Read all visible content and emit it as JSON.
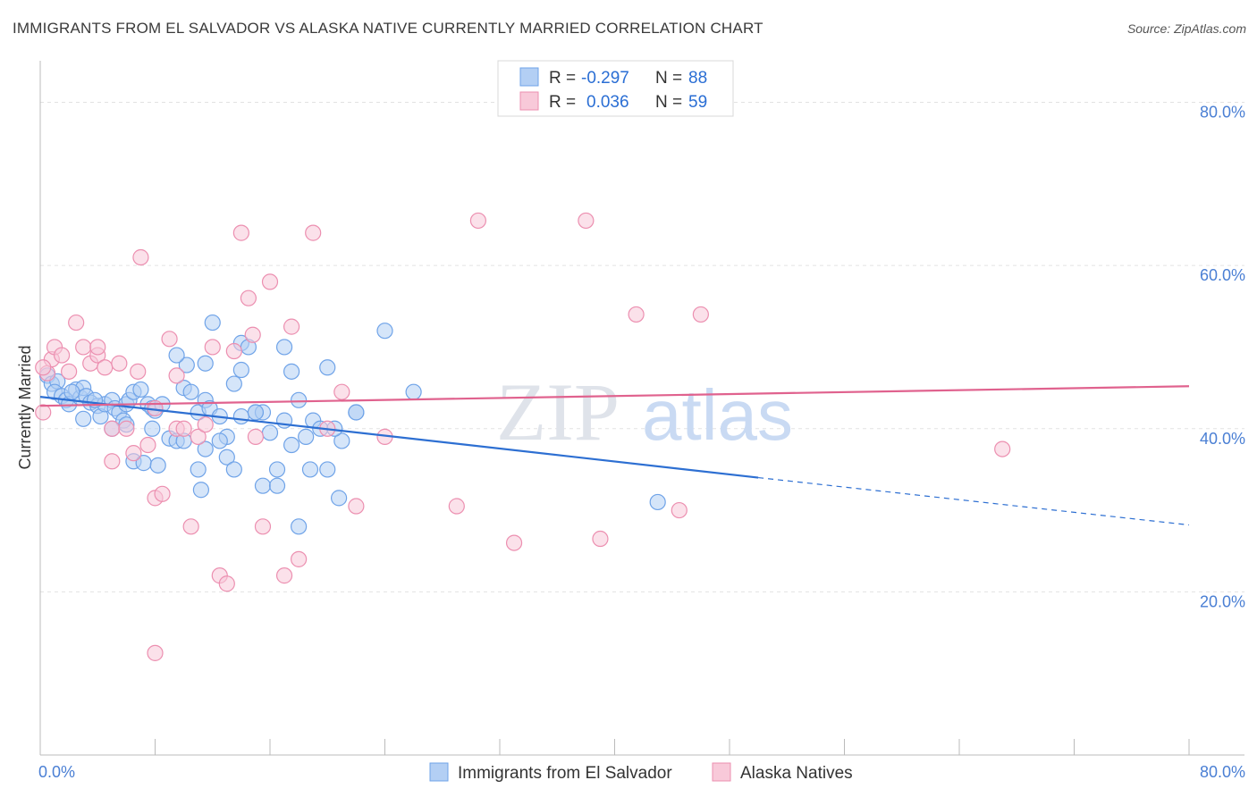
{
  "title": "IMMIGRANTS FROM EL SALVADOR VS ALASKA NATIVE CURRENTLY MARRIED CORRELATION CHART",
  "source": "Source: ZipAtlas.com",
  "watermark": {
    "zip": "ZIP",
    "atlas": "atlas"
  },
  "chart_data": {
    "type": "scatter",
    "ylabel": "Currently Married",
    "xlim": [
      0,
      80
    ],
    "ylim": [
      0,
      84
    ],
    "x_ticks": [
      {
        "value": 0,
        "label": "0.0%"
      },
      {
        "value": 80,
        "label": "80.0%"
      }
    ],
    "y_ticks": [
      {
        "value": 20,
        "label": "20.0%"
      },
      {
        "value": 40,
        "label": "40.0%"
      },
      {
        "value": 60,
        "label": "60.0%"
      },
      {
        "value": 80,
        "label": "80.0%"
      }
    ],
    "grid": true,
    "legend_position": "top-center",
    "legend": [
      {
        "r_label": "R =",
        "r_value": "-0.297",
        "n_label": "N =",
        "n_value": "88"
      },
      {
        "r_label": "R =",
        "r_value": "0.036",
        "n_label": "N =",
        "n_value": "59"
      }
    ],
    "series": [
      {
        "name": "Immigrants from El Salvador",
        "color": "#6fa3e8",
        "fill": "#b3cff4",
        "line_color": "#2d6fd2",
        "trend": {
          "x0": 0,
          "y0": 43.9,
          "x1": 50,
          "y1": 34.0,
          "dash_to_x": 80,
          "dash_to_y": 28.2
        },
        "points": [
          [
            0.5,
            46.5
          ],
          [
            0.8,
            45.5
          ],
          [
            1.2,
            45.8
          ],
          [
            1.0,
            44.5
          ],
          [
            1.5,
            44.0
          ],
          [
            1.8,
            43.5
          ],
          [
            2.0,
            43.0
          ],
          [
            2.5,
            44.8
          ],
          [
            2.8,
            43.8
          ],
          [
            3.0,
            45.0
          ],
          [
            3.2,
            44.0
          ],
          [
            3.5,
            43.2
          ],
          [
            3.0,
            41.2
          ],
          [
            4.0,
            42.8
          ],
          [
            4.2,
            41.5
          ],
          [
            4.5,
            43.0
          ],
          [
            5.0,
            43.5
          ],
          [
            5.2,
            42.5
          ],
          [
            5.5,
            42.0
          ],
          [
            5.8,
            41.0
          ],
          [
            6.0,
            43.0
          ],
          [
            6.2,
            43.5
          ],
          [
            6.0,
            40.5
          ],
          [
            6.5,
            44.5
          ],
          [
            7.0,
            44.8
          ],
          [
            7.5,
            43.0
          ],
          [
            7.8,
            42.5
          ],
          [
            8.0,
            42.2
          ],
          [
            8.5,
            43.0
          ],
          [
            9.0,
            38.8
          ],
          [
            9.5,
            38.5
          ],
          [
            10.0,
            45.0
          ],
          [
            10.5,
            44.5
          ],
          [
            10.2,
            47.8
          ],
          [
            11.0,
            42.0
          ],
          [
            11.5,
            43.5
          ],
          [
            11.8,
            42.5
          ],
          [
            11.5,
            48.0
          ],
          [
            12.0,
            53.0
          ],
          [
            12.5,
            41.5
          ],
          [
            13.0,
            39.0
          ],
          [
            13.5,
            45.5
          ],
          [
            14.0,
            47.2
          ],
          [
            14.0,
            50.5
          ],
          [
            14.5,
            50.0
          ],
          [
            15.0,
            42.0
          ],
          [
            15.5,
            42.0
          ],
          [
            16.0,
            39.5
          ],
          [
            17.0,
            50.0
          ],
          [
            17.5,
            47.0
          ],
          [
            17.0,
            41.0
          ],
          [
            18.0,
            43.5
          ],
          [
            18.5,
            39.0
          ],
          [
            19.0,
            41.0
          ],
          [
            19.5,
            40.0
          ],
          [
            20.0,
            47.5
          ],
          [
            21.0,
            38.5
          ],
          [
            22.0,
            42.0
          ],
          [
            24.0,
            52.0
          ],
          [
            26.0,
            44.5
          ],
          [
            5.0,
            40.0
          ],
          [
            6.5,
            36.0
          ],
          [
            7.2,
            35.8
          ],
          [
            7.8,
            40.0
          ],
          [
            8.2,
            35.5
          ],
          [
            9.5,
            49.0
          ],
          [
            10.0,
            38.5
          ],
          [
            11.0,
            35.0
          ],
          [
            11.2,
            32.5
          ],
          [
            11.5,
            37.5
          ],
          [
            12.5,
            38.5
          ],
          [
            13.0,
            36.5
          ],
          [
            13.5,
            35.0
          ],
          [
            14.0,
            41.5
          ],
          [
            15.0,
            42.0
          ],
          [
            15.5,
            33.0
          ],
          [
            16.5,
            35.0
          ],
          [
            16.5,
            33.0
          ],
          [
            17.5,
            38.0
          ],
          [
            18.0,
            28.0
          ],
          [
            18.8,
            35.0
          ],
          [
            20.0,
            35.0
          ],
          [
            20.5,
            40.0
          ],
          [
            20.8,
            31.5
          ],
          [
            22.0,
            42.0
          ],
          [
            3.8,
            43.5
          ],
          [
            2.2,
            44.5
          ],
          [
            43.0,
            31.0
          ]
        ]
      },
      {
        "name": "Alaska Natives",
        "color": "#ec8fb0",
        "fill": "#f8c9d9",
        "line_color": "#e0628e",
        "trend": {
          "x0": 0,
          "y0": 42.8,
          "x1": 80,
          "y1": 45.2
        },
        "points": [
          [
            0.2,
            42.0
          ],
          [
            0.5,
            46.8
          ],
          [
            0.8,
            48.5
          ],
          [
            1.0,
            50.0
          ],
          [
            1.5,
            49.0
          ],
          [
            2.0,
            47.0
          ],
          [
            2.5,
            53.0
          ],
          [
            3.0,
            50.0
          ],
          [
            3.5,
            48.0
          ],
          [
            4.0,
            49.0
          ],
          [
            4.0,
            50.0
          ],
          [
            4.5,
            47.5
          ],
          [
            5.0,
            40.0
          ],
          [
            5.0,
            36.0
          ],
          [
            6.0,
            40.0
          ],
          [
            6.5,
            37.0
          ],
          [
            6.8,
            47.0
          ],
          [
            7.0,
            61.0
          ],
          [
            7.5,
            38.0
          ],
          [
            8.0,
            42.5
          ],
          [
            8.0,
            31.5
          ],
          [
            8.5,
            32.0
          ],
          [
            9.0,
            51.0
          ],
          [
            9.5,
            46.5
          ],
          [
            9.5,
            40.0
          ],
          [
            10.0,
            40.0
          ],
          [
            10.5,
            28.0
          ],
          [
            11.0,
            39.0
          ],
          [
            11.5,
            40.5
          ],
          [
            12.0,
            50.0
          ],
          [
            12.5,
            22.0
          ],
          [
            13.0,
            21.0
          ],
          [
            13.5,
            49.5
          ],
          [
            14.0,
            64.0
          ],
          [
            14.5,
            56.0
          ],
          [
            14.8,
            51.5
          ],
          [
            15.0,
            39.0
          ],
          [
            15.5,
            28.0
          ],
          [
            16.0,
            58.0
          ],
          [
            17.0,
            22.0
          ],
          [
            17.5,
            52.5
          ],
          [
            18.0,
            24.0
          ],
          [
            19.0,
            64.0
          ],
          [
            20.0,
            40.0
          ],
          [
            21.0,
            44.5
          ],
          [
            22.0,
            30.5
          ],
          [
            24.0,
            39.0
          ],
          [
            29.0,
            30.5
          ],
          [
            30.5,
            65.5
          ],
          [
            33.0,
            26.0
          ],
          [
            38.0,
            65.5
          ],
          [
            39.0,
            26.5
          ],
          [
            41.5,
            54.0
          ],
          [
            44.5,
            30.0
          ],
          [
            46.0,
            54.0
          ],
          [
            67.0,
            37.5
          ],
          [
            8.0,
            12.5
          ],
          [
            5.5,
            48.0
          ],
          [
            0.2,
            47.5
          ]
        ]
      }
    ]
  }
}
